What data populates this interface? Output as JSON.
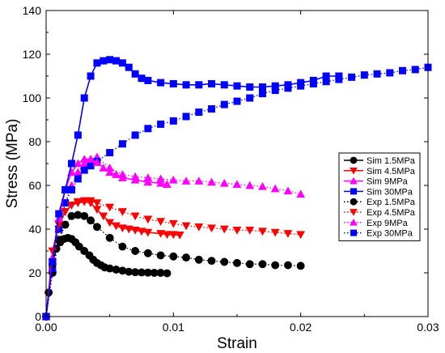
{
  "chart_data": {
    "type": "line",
    "title": "",
    "xlabel": "Strain",
    "ylabel": "Stress (MPa)",
    "xlim": [
      0,
      0.03
    ],
    "ylim": [
      0,
      140
    ],
    "xticks": [
      0,
      0.01,
      0.02,
      0.03
    ],
    "xtick_labels": [
      "0.00",
      "0.01",
      "0.02",
      "0.03"
    ],
    "yticks": [
      0,
      20,
      40,
      60,
      80,
      100,
      120,
      140
    ],
    "ytick_labels": [
      "0",
      "20",
      "40",
      "60",
      "80",
      "100",
      "120",
      "140"
    ],
    "grid": false,
    "legend_position": "right",
    "series": [
      {
        "name": "Sim 1.5MPa",
        "color": "#000000",
        "marker": "circle",
        "line": "solid",
        "x": [
          0,
          0.0002,
          0.0005,
          0.0008,
          0.0011,
          0.0014,
          0.0017,
          0.002,
          0.0023,
          0.0026,
          0.003,
          0.0034,
          0.0037,
          0.004,
          0.0043,
          0.0046,
          0.005,
          0.0055,
          0.006,
          0.0065,
          0.007,
          0.0075,
          0.008,
          0.0085,
          0.009,
          0.0095
        ],
        "y": [
          0,
          11,
          24,
          31,
          34,
          35.5,
          36,
          35.5,
          34,
          32,
          30,
          28,
          26,
          24.5,
          23.5,
          22.5,
          22,
          21.5,
          21,
          20.5,
          20.3,
          20.2,
          20.1,
          20,
          20,
          19.8
        ]
      },
      {
        "name": "Sim 4.5MPa",
        "color": "#ff0000",
        "marker": "triangle-down",
        "line": "solid",
        "x": [
          0,
          0.0005,
          0.001,
          0.0015,
          0.002,
          0.0025,
          0.003,
          0.0035,
          0.004,
          0.0045,
          0.005,
          0.0055,
          0.006,
          0.0065,
          0.007,
          0.0075,
          0.008,
          0.009,
          0.0095,
          0.01,
          0.0105
        ],
        "y": [
          0,
          30,
          42,
          48,
          51,
          52,
          52.5,
          52,
          49,
          46,
          43,
          41.5,
          40.5,
          40,
          39.5,
          39,
          38.5,
          38,
          37.5,
          37.5,
          37.3
        ]
      },
      {
        "name": "Sim 9MPa",
        "color": "#ff00ff",
        "marker": "triangle-up",
        "line": "solid",
        "x": [
          0,
          0.0005,
          0.001,
          0.0015,
          0.002,
          0.0025,
          0.003,
          0.0035,
          0.004,
          0.0045,
          0.005,
          0.0055,
          0.006,
          0.007,
          0.008,
          0.009,
          0.0095
        ],
        "y": [
          0,
          27,
          45,
          58,
          66,
          70,
          72,
          72,
          70.5,
          68,
          66,
          65,
          63.5,
          62.5,
          61.5,
          61,
          60.5
        ]
      },
      {
        "name": "Sim 30MPa",
        "color": "#0000ff",
        "marker": "square",
        "line": "solid",
        "x": [
          0,
          0.0005,
          0.001,
          0.0015,
          0.002,
          0.0025,
          0.003,
          0.0035,
          0.004,
          0.0045,
          0.005,
          0.0055,
          0.006,
          0.0065,
          0.007,
          0.0075,
          0.008,
          0.009,
          0.01,
          0.011,
          0.012,
          0.013,
          0.014,
          0.015,
          0.016,
          0.017,
          0.018,
          0.019,
          0.02,
          0.021,
          0.022,
          0.023
        ],
        "y": [
          0,
          25,
          47,
          58,
          70,
          83,
          100,
          110,
          116,
          117,
          117.5,
          117,
          116,
          114,
          111,
          109,
          108,
          107,
          106.5,
          106,
          106,
          106.5,
          106,
          105.5,
          105,
          105,
          105.5,
          106,
          107,
          108,
          110,
          110
        ]
      },
      {
        "name": "Exp 1.5MPa",
        "color": "#000000",
        "marker": "circle",
        "line": "dotted",
        "x": [
          0,
          0.0005,
          0.001,
          0.0015,
          0.002,
          0.0025,
          0.003,
          0.0035,
          0.004,
          0.005,
          0.006,
          0.007,
          0.008,
          0.009,
          0.01,
          0.011,
          0.012,
          0.013,
          0.014,
          0.015,
          0.016,
          0.017,
          0.018,
          0.019,
          0.02
        ],
        "y": [
          0,
          20,
          35,
          42,
          46,
          46.5,
          46,
          44,
          41,
          36,
          32,
          30,
          29,
          28,
          27.5,
          27,
          26,
          25.5,
          25,
          24.5,
          24,
          24,
          23.5,
          23.5,
          23.2
        ]
      },
      {
        "name": "Exp 4.5MPa",
        "color": "#ff0000",
        "marker": "triangle-down",
        "line": "dotted",
        "x": [
          0,
          0.0005,
          0.001,
          0.0015,
          0.002,
          0.0025,
          0.003,
          0.0035,
          0.004,
          0.005,
          0.006,
          0.007,
          0.008,
          0.009,
          0.01,
          0.011,
          0.012,
          0.013,
          0.014,
          0.015,
          0.016,
          0.017,
          0.018,
          0.019,
          0.02
        ],
        "y": [
          0,
          25,
          40,
          48,
          51,
          52.5,
          53,
          53,
          52,
          50,
          48,
          46,
          44.5,
          43.5,
          42.5,
          41.5,
          41,
          40.5,
          40,
          39.5,
          39.5,
          39,
          38.5,
          38,
          37.5
        ]
      },
      {
        "name": "Exp 9MPa",
        "color": "#ff00ff",
        "marker": "triangle-up",
        "line": "dotted",
        "x": [
          0,
          0.0005,
          0.001,
          0.0015,
          0.002,
          0.0025,
          0.003,
          0.0035,
          0.004,
          0.005,
          0.006,
          0.007,
          0.008,
          0.009,
          0.01,
          0.011,
          0.012,
          0.013,
          0.014,
          0.015,
          0.016,
          0.017,
          0.018,
          0.019,
          0.02
        ],
        "y": [
          0,
          22,
          40,
          52,
          60,
          66,
          70,
          72,
          73,
          68,
          65,
          64,
          63.5,
          63,
          62.5,
          62,
          62,
          61.5,
          61,
          60.5,
          60,
          59.5,
          58.5,
          57.5,
          56
        ]
      },
      {
        "name": "Exp 30MPa",
        "color": "#0000ff",
        "marker": "square",
        "line": "dotted",
        "x": [
          0,
          0.0005,
          0.001,
          0.0015,
          0.002,
          0.0025,
          0.003,
          0.0035,
          0.004,
          0.005,
          0.006,
          0.007,
          0.008,
          0.009,
          0.01,
          0.011,
          0.012,
          0.013,
          0.014,
          0.015,
          0.016,
          0.017,
          0.018,
          0.019,
          0.02,
          0.021,
          0.022,
          0.023,
          0.024,
          0.025,
          0.026,
          0.027,
          0.028,
          0.029,
          0.03
        ],
        "y": [
          0,
          22,
          40,
          52,
          58,
          63,
          67,
          69,
          71,
          75,
          79,
          83,
          86,
          88,
          89.5,
          91.5,
          93.5,
          95,
          97,
          98.5,
          100,
          102,
          103.5,
          104.5,
          105.5,
          106.5,
          107.5,
          108.5,
          109.5,
          110.5,
          111,
          111.5,
          112.5,
          113,
          114
        ]
      }
    ]
  }
}
